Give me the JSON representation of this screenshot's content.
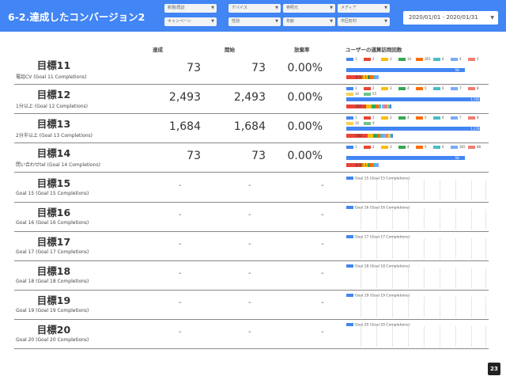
{
  "title": "6-2.達成したコンバージョン2",
  "filters": [
    {
      "label": "新規/再訪"
    },
    {
      "label": "デバイス"
    },
    {
      "label": "参照元"
    },
    {
      "label": "メディア"
    },
    {
      "label": "キャンペーン"
    },
    {
      "label": "性別"
    },
    {
      "label": "年齢"
    },
    {
      "label": "市区町村"
    }
  ],
  "daterange": "2020/01/01 - 2020/01/31",
  "columns": {
    "achieved": "達成",
    "started": "開始",
    "abandon_rate": "放棄率",
    "chart": "ユーザーの通算訪問回数"
  },
  "placeholder": "-",
  "colors": [
    "#4285f4",
    "#ea4335",
    "#fbbc04",
    "#34a853",
    "#ff6d01",
    "#46bdc6",
    "#7baaf7",
    "#f07b72",
    "#fcd04f",
    "#71c287"
  ],
  "goals": [
    {
      "name": "目標11",
      "sub": "電話CV (Goal 11 Completions)",
      "achieved": "73",
      "started": "73",
      "rate": "0.00%",
      "legend": [
        "1",
        "2",
        "3",
        "10",
        "365",
        "6",
        "4",
        "5"
      ],
      "bar_label": "58",
      "bar_value": 0.84,
      "stack_labels": [
        "8",
        "3",
        "1",
        "1 1"
      ],
      "stack": [
        0.11,
        0.04,
        0.02,
        0.02,
        0.02,
        0.02
      ]
    },
    {
      "name": "目標12",
      "sub": "1分以上 (Goal 12 Completions)",
      "achieved": "2,493",
      "started": "2,493",
      "rate": "0.00%",
      "legend": [
        "1",
        "2",
        "3",
        "4",
        "5",
        "6",
        "7",
        "8",
        "10",
        "55"
      ],
      "bar_label": "1,765",
      "bar_value": 0.95,
      "stack_labels": [
        "257",
        "…"
      ],
      "stack": [
        0.14,
        0.04,
        0.03,
        0.02,
        0.02,
        0.02,
        0.02,
        0.01,
        0.01,
        0.01
      ]
    },
    {
      "name": "目標13",
      "sub": "2分半以上 (Goal 13 Completions)",
      "achieved": "1,684",
      "started": "1,684",
      "rate": "0.00%",
      "legend": [
        "1",
        "2",
        "3",
        "4",
        "5",
        "6",
        "7",
        "8",
        "10",
        "9"
      ],
      "bar_label": "1,178",
      "bar_value": 0.95,
      "stack_labels": [
        "192",
        "…"
      ],
      "stack": [
        0.15,
        0.04,
        0.03,
        0.02,
        0.02,
        0.02,
        0.02,
        0.01,
        0.01,
        0.01
      ]
    },
    {
      "name": "目標14",
      "sub": "問い合わせtel (Goal 14 Completions)",
      "achieved": "73",
      "started": "73",
      "rate": "0.00%",
      "legend": [
        "1",
        "2",
        "3",
        "4",
        "5",
        "6",
        "365",
        "88"
      ],
      "bar_label": "58",
      "bar_value": 0.84,
      "stack_labels": [
        "8",
        "3",
        "1 1"
      ],
      "stack": [
        0.11,
        0.04,
        0.02,
        0.02,
        0.02,
        0.02
      ]
    },
    {
      "name": "目標15",
      "sub": "Goal 15 (Goal 15 Completions)",
      "empty_legend": "Goal 15 (Goal 15 Completions)"
    },
    {
      "name": "目標16",
      "sub": "Goal 16 (Goal 16 Completions)",
      "empty_legend": "Goal 16 (Goal 16 Completions)"
    },
    {
      "name": "目標17",
      "sub": "Goal 17 (Goal 17 Completions)",
      "empty_legend": "Goal 17 (Goal 17 Completions)"
    },
    {
      "name": "目標18",
      "sub": "Goal 18 (Goal 18 Completions)",
      "empty_legend": "Goal 18 (Goal 18 Completions)"
    },
    {
      "name": "目標19",
      "sub": "Goal 19 (Goal 19 Completions)",
      "empty_legend": "Goal 19 (Goal 19 Completions)"
    },
    {
      "name": "目標20",
      "sub": "Goal 20 (Goal 20 Completions)",
      "empty_legend": "Goal 20 (Goal 20 Completions)"
    }
  ],
  "page_number": "23"
}
